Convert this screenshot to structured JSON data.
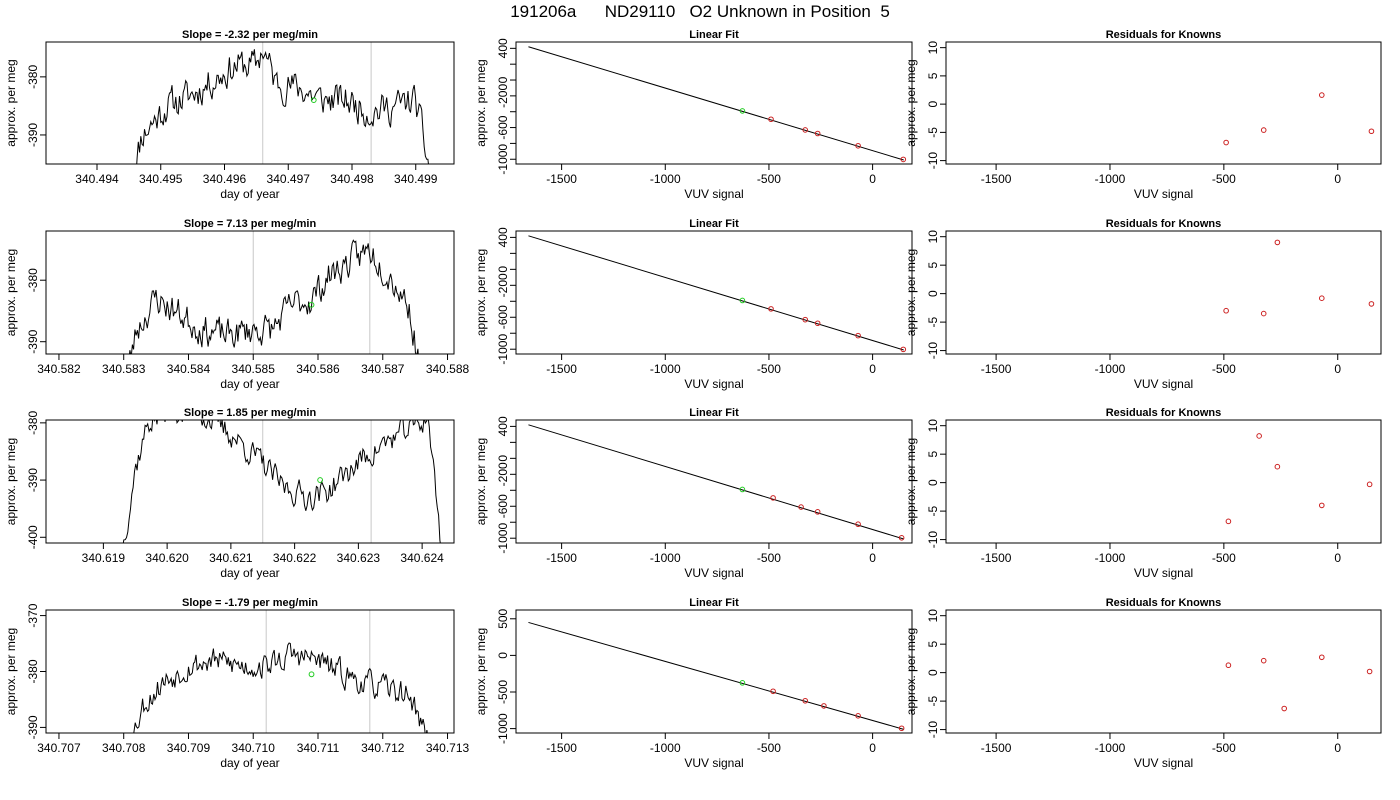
{
  "main_title": "191206a      ND29110   O2 Unknown in Position  5",
  "chart_data": [
    {
      "type": "line",
      "panel": "trace",
      "row": 0,
      "title": "Slope =  -2.32  per meg/min",
      "xlabel": "day of year",
      "ylabel": "approx. per meg",
      "xlim": [
        340.4932,
        340.4996
      ],
      "ylim": [
        -395,
        -374
      ],
      "xticks": [
        340.494,
        340.495,
        340.496,
        340.497,
        340.498,
        340.499
      ],
      "xtick_labels": [
        "340.494",
        "340.495",
        "340.496",
        "340.497",
        "340.498",
        "340.499"
      ],
      "yticks": [
        -390,
        -380
      ],
      "ytick_labels": [
        "-390",
        "-380"
      ],
      "vlines": [
        340.4966,
        340.4983
      ],
      "trace_range": [
        340.49455,
        340.49925
      ],
      "anchors": [
        [
          340.49455,
          -398
        ],
        [
          340.4947,
          -390
        ],
        [
          340.4951,
          -385
        ],
        [
          340.4955,
          -383
        ],
        [
          340.4959,
          -380
        ],
        [
          340.4962,
          -378
        ],
        [
          340.4965,
          -378
        ],
        [
          340.4966,
          -375
        ],
        [
          340.4968,
          -381
        ],
        [
          340.4972,
          -382
        ],
        [
          340.4975,
          -384
        ],
        [
          340.4979,
          -384
        ],
        [
          340.4983,
          -386
        ],
        [
          340.4987,
          -385
        ],
        [
          340.499,
          -384
        ],
        [
          340.49925,
          -398
        ]
      ],
      "noise": 2.2,
      "seed": 11,
      "marker": {
        "x": 340.4974,
        "y": -384,
        "color": "#22cc22"
      }
    },
    {
      "type": "scatter",
      "panel": "fit",
      "row": 0,
      "title": "Linear Fit",
      "xlabel": "VUV signal",
      "ylabel": "approx. per meg",
      "xlim": [
        -1720,
        190
      ],
      "ylim": [
        -1060,
        480
      ],
      "xticks": [
        -1500,
        -1000,
        -500,
        0
      ],
      "xtick_labels": [
        "-1500",
        "-1000",
        "-500",
        "0"
      ],
      "yticks": [
        -1000,
        -800,
        -600,
        -400,
        -200,
        0,
        200,
        400
      ],
      "ytick_labels": [
        "-1000",
        "",
        "-600",
        "",
        "-200",
        "0",
        "",
        "400"
      ],
      "fit_line": {
        "x": [
          -1660,
          150
        ],
        "y": [
          420,
          -1010
        ]
      },
      "points": [
        {
          "x": -628,
          "y": -390,
          "color": "#22cc22"
        },
        {
          "x": -490,
          "y": -495,
          "color": "#cc2222"
        },
        {
          "x": -325,
          "y": -630,
          "color": "#cc2222"
        },
        {
          "x": -265,
          "y": -675,
          "color": "#cc2222"
        },
        {
          "x": -70,
          "y": -830,
          "color": "#cc2222"
        },
        {
          "x": 148,
          "y": -1002,
          "color": "#cc2222"
        }
      ]
    },
    {
      "type": "scatter",
      "panel": "resid",
      "row": 0,
      "title": "Residuals for Knowns",
      "xlabel": "VUV signal",
      "ylabel": "approx. per meg",
      "xlim": [
        -1720,
        190
      ],
      "ylim": [
        -10.6,
        11
      ],
      "xticks": [
        -1500,
        -1000,
        -500,
        0
      ],
      "xtick_labels": [
        "-1500",
        "-1000",
        "-500",
        "0"
      ],
      "yticks": [
        -10,
        -5,
        0,
        5,
        10
      ],
      "ytick_labels": [
        "-10",
        "-5",
        "0",
        "5",
        "10"
      ],
      "points": [
        {
          "x": -490,
          "y": -6.8,
          "color": "#cc2222"
        },
        {
          "x": -325,
          "y": -4.6,
          "color": "#cc2222"
        },
        {
          "x": -70,
          "y": 1.6,
          "color": "#cc2222"
        },
        {
          "x": 148,
          "y": -4.8,
          "color": "#cc2222"
        }
      ]
    },
    {
      "type": "line",
      "panel": "trace",
      "row": 1,
      "title": "Slope =  7.13  per meg/min",
      "xlabel": "day of year",
      "ylabel": "approx. per meg",
      "xlim": [
        340.5818,
        340.5881
      ],
      "ylim": [
        -392,
        -372
      ],
      "xticks": [
        340.582,
        340.583,
        340.584,
        340.585,
        340.586,
        340.587,
        340.588
      ],
      "xtick_labels": [
        "340.582",
        "340.583",
        "340.584",
        "340.585",
        "340.586",
        "340.587",
        "340.588"
      ],
      "yticks": [
        -390,
        -380
      ],
      "ytick_labels": [
        "-390",
        "-380"
      ],
      "vlines": [
        340.585,
        340.5868
      ],
      "trace_range": [
        340.583,
        340.5876
      ],
      "anchors": [
        [
          340.583,
          -398
        ],
        [
          340.5832,
          -388
        ],
        [
          340.5835,
          -383
        ],
        [
          340.5838,
          -385
        ],
        [
          340.5842,
          -388
        ],
        [
          340.5846,
          -389
        ],
        [
          340.585,
          -388
        ],
        [
          340.5853,
          -388
        ],
        [
          340.5856,
          -384
        ],
        [
          340.5859,
          -383
        ],
        [
          340.5862,
          -379
        ],
        [
          340.5865,
          -377
        ],
        [
          340.5868,
          -375
        ],
        [
          340.5871,
          -379
        ],
        [
          340.5874,
          -384
        ],
        [
          340.5876,
          -396
        ]
      ],
      "noise": 2.0,
      "seed": 23,
      "marker": {
        "x": 340.5859,
        "y": -384,
        "color": "#22cc22"
      }
    },
    {
      "type": "scatter",
      "panel": "fit",
      "row": 1,
      "title": "Linear Fit",
      "xlabel": "VUV signal",
      "ylabel": "approx. per meg",
      "xlim": [
        -1720,
        190
      ],
      "ylim": [
        -1060,
        480
      ],
      "xticks": [
        -1500,
        -1000,
        -500,
        0
      ],
      "xtick_labels": [
        "-1500",
        "-1000",
        "-500",
        "0"
      ],
      "yticks": [
        -1000,
        -800,
        -600,
        -400,
        -200,
        0,
        200,
        400
      ],
      "ytick_labels": [
        "-1000",
        "",
        "-600",
        "",
        "-200",
        "0",
        "",
        "400"
      ],
      "fit_line": {
        "x": [
          -1660,
          150
        ],
        "y": [
          420,
          -1010
        ]
      },
      "points": [
        {
          "x": -628,
          "y": -390,
          "color": "#22cc22"
        },
        {
          "x": -490,
          "y": -495,
          "color": "#cc2222"
        },
        {
          "x": -325,
          "y": -630,
          "color": "#cc2222"
        },
        {
          "x": -265,
          "y": -675,
          "color": "#cc2222"
        },
        {
          "x": -70,
          "y": -830,
          "color": "#cc2222"
        },
        {
          "x": 148,
          "y": -1002,
          "color": "#cc2222"
        }
      ]
    },
    {
      "type": "scatter",
      "panel": "resid",
      "row": 1,
      "title": "Residuals for Knowns",
      "xlabel": "VUV signal",
      "ylabel": "approx. per meg",
      "xlim": [
        -1720,
        190
      ],
      "ylim": [
        -10.6,
        11
      ],
      "xticks": [
        -1500,
        -1000,
        -500,
        0
      ],
      "xtick_labels": [
        "-1500",
        "-1000",
        "-500",
        "0"
      ],
      "yticks": [
        -10,
        -5,
        0,
        5,
        10
      ],
      "ytick_labels": [
        "-10",
        "-5",
        "0",
        "5",
        "10"
      ],
      "points": [
        {
          "x": -490,
          "y": -3.0,
          "color": "#cc2222"
        },
        {
          "x": -325,
          "y": -3.5,
          "color": "#cc2222"
        },
        {
          "x": -265,
          "y": 9.0,
          "color": "#cc2222"
        },
        {
          "x": -70,
          "y": -0.8,
          "color": "#cc2222"
        },
        {
          "x": 148,
          "y": -1.8,
          "color": "#cc2222"
        }
      ]
    },
    {
      "type": "line",
      "panel": "trace",
      "row": 2,
      "title": "Slope =  1.85  per meg/min",
      "xlabel": "day of year",
      "ylabel": "approx. per meg",
      "xlim": [
        340.6181,
        340.6245
      ],
      "ylim": [
        -401,
        -379.5
      ],
      "xticks": [
        340.619,
        340.62,
        340.621,
        340.622,
        340.623,
        340.624
      ],
      "xtick_labels": [
        "340.619",
        "340.620",
        "340.621",
        "340.622",
        "340.623",
        "340.624"
      ],
      "yticks": [
        -400,
        -390,
        -380
      ],
      "ytick_labels": [
        "-400",
        "-390",
        "-380"
      ],
      "vlines": [
        340.6215,
        340.6232
      ],
      "trace_range": [
        340.6193,
        340.6243
      ],
      "anchors": [
        [
          340.6193,
          -402
        ],
        [
          340.6195,
          -388
        ],
        [
          340.6197,
          -380
        ],
        [
          340.62,
          -378
        ],
        [
          340.6205,
          -378
        ],
        [
          340.621,
          -382
        ],
        [
          340.6214,
          -386
        ],
        [
          340.6218,
          -391
        ],
        [
          340.6222,
          -393
        ],
        [
          340.6225,
          -392
        ],
        [
          340.6228,
          -389
        ],
        [
          340.6231,
          -386
        ],
        [
          340.6235,
          -383
        ],
        [
          340.6238,
          -381
        ],
        [
          340.6241,
          -379
        ],
        [
          340.6243,
          -402
        ]
      ],
      "noise": 1.8,
      "seed": 37,
      "marker": {
        "x": 340.6224,
        "y": -390,
        "color": "#22cc22"
      }
    },
    {
      "type": "scatter",
      "panel": "fit",
      "row": 2,
      "title": "Linear Fit",
      "xlabel": "VUV signal",
      "ylabel": "approx. per meg",
      "xlim": [
        -1720,
        190
      ],
      "ylim": [
        -1060,
        480
      ],
      "xticks": [
        -1500,
        -1000,
        -500,
        0
      ],
      "xtick_labels": [
        "-1500",
        "-1000",
        "-500",
        "0"
      ],
      "yticks": [
        -1000,
        -800,
        -600,
        -400,
        -200,
        0,
        200,
        400
      ],
      "ytick_labels": [
        "-1000",
        "",
        "-600",
        "",
        "-200",
        "0",
        "",
        "400"
      ],
      "fit_line": {
        "x": [
          -1660,
          150
        ],
        "y": [
          420,
          -1010
        ]
      },
      "points": [
        {
          "x": -628,
          "y": -390,
          "color": "#22cc22"
        },
        {
          "x": -480,
          "y": -495,
          "color": "#cc2222"
        },
        {
          "x": -345,
          "y": -610,
          "color": "#cc2222"
        },
        {
          "x": -265,
          "y": -670,
          "color": "#cc2222"
        },
        {
          "x": -70,
          "y": -825,
          "color": "#cc2222"
        },
        {
          "x": 140,
          "y": -995,
          "color": "#cc2222"
        }
      ]
    },
    {
      "type": "scatter",
      "panel": "resid",
      "row": 2,
      "title": "Residuals for Knowns",
      "xlabel": "VUV signal",
      "ylabel": "approx. per meg",
      "xlim": [
        -1720,
        190
      ],
      "ylim": [
        -10.6,
        11
      ],
      "xticks": [
        -1500,
        -1000,
        -500,
        0
      ],
      "xtick_labels": [
        "-1500",
        "-1000",
        "-500",
        "0"
      ],
      "yticks": [
        -10,
        -5,
        0,
        5,
        10
      ],
      "ytick_labels": [
        "-10",
        "-5",
        "0",
        "5",
        "10"
      ],
      "points": [
        {
          "x": -480,
          "y": -6.8,
          "color": "#cc2222"
        },
        {
          "x": -345,
          "y": 8.2,
          "color": "#cc2222"
        },
        {
          "x": -265,
          "y": 2.8,
          "color": "#cc2222"
        },
        {
          "x": -70,
          "y": -4.0,
          "color": "#cc2222"
        },
        {
          "x": 140,
          "y": -0.3,
          "color": "#cc2222"
        }
      ]
    },
    {
      "type": "line",
      "panel": "trace",
      "row": 3,
      "title": "Slope =  -1.79  per meg/min",
      "xlabel": "day of year",
      "ylabel": "approx. per meg",
      "xlim": [
        340.7068,
        340.7131
      ],
      "ylim": [
        -391,
        -369
      ],
      "xticks": [
        340.707,
        340.708,
        340.709,
        340.71,
        340.711,
        340.712,
        340.713
      ],
      "xtick_labels": [
        "340.707",
        "340.708",
        "340.709",
        "340.710",
        "340.711",
        "340.712",
        "340.713"
      ],
      "yticks": [
        -390,
        -380,
        -370
      ],
      "ytick_labels": [
        "-390",
        "-380",
        "-370"
      ],
      "vlines": [
        340.7102,
        340.7118
      ],
      "trace_range": [
        340.7081,
        340.7127
      ],
      "anchors": [
        [
          340.7081,
          -392
        ],
        [
          340.7083,
          -386
        ],
        [
          340.7086,
          -382
        ],
        [
          340.709,
          -379
        ],
        [
          340.7094,
          -378
        ],
        [
          340.7098,
          -379
        ],
        [
          340.7102,
          -379
        ],
        [
          340.7106,
          -377
        ],
        [
          340.711,
          -378
        ],
        [
          340.7113,
          -380
        ],
        [
          340.7117,
          -382
        ],
        [
          340.712,
          -383
        ],
        [
          340.7124,
          -384
        ],
        [
          340.7127,
          -392
        ]
      ],
      "noise": 1.8,
      "seed": 53,
      "marker": {
        "x": 340.7109,
        "y": -380.5,
        "color": "#22cc22"
      }
    },
    {
      "type": "scatter",
      "panel": "fit",
      "row": 3,
      "title": "Linear Fit",
      "xlabel": "VUV signal",
      "ylabel": "approx. per meg",
      "xlim": [
        -1720,
        190
      ],
      "ylim": [
        -1060,
        620
      ],
      "xticks": [
        -1500,
        -1000,
        -500,
        0
      ],
      "xtick_labels": [
        "-1500",
        "-1000",
        "-500",
        "0"
      ],
      "yticks": [
        -1000,
        -500,
        0,
        500
      ],
      "ytick_labels": [
        "-1000",
        "-500",
        "0",
        "500"
      ],
      "fit_line": {
        "x": [
          -1660,
          150
        ],
        "y": [
          450,
          -1010
        ]
      },
      "points": [
        {
          "x": -628,
          "y": -375,
          "color": "#22cc22"
        },
        {
          "x": -480,
          "y": -490,
          "color": "#cc2222"
        },
        {
          "x": -325,
          "y": -620,
          "color": "#cc2222"
        },
        {
          "x": -235,
          "y": -690,
          "color": "#cc2222"
        },
        {
          "x": -70,
          "y": -825,
          "color": "#cc2222"
        },
        {
          "x": 140,
          "y": -995,
          "color": "#cc2222"
        }
      ]
    },
    {
      "type": "scatter",
      "panel": "resid",
      "row": 3,
      "title": "Residuals for Knowns",
      "xlabel": "VUV signal",
      "ylabel": "approx. per meg",
      "xlim": [
        -1720,
        190
      ],
      "ylim": [
        -10.6,
        11
      ],
      "xticks": [
        -1500,
        -1000,
        -500,
        0
      ],
      "xtick_labels": [
        "-1500",
        "-1000",
        "-500",
        "0"
      ],
      "yticks": [
        -10,
        -5,
        0,
        5,
        10
      ],
      "ytick_labels": [
        "-10",
        "-5",
        "0",
        "5",
        "10"
      ],
      "points": [
        {
          "x": -480,
          "y": 1.3,
          "color": "#cc2222"
        },
        {
          "x": -325,
          "y": 2.1,
          "color": "#cc2222"
        },
        {
          "x": -235,
          "y": -6.3,
          "color": "#cc2222"
        },
        {
          "x": -70,
          "y": 2.7,
          "color": "#cc2222"
        },
        {
          "x": 140,
          "y": 0.2,
          "color": "#cc2222"
        }
      ]
    }
  ]
}
